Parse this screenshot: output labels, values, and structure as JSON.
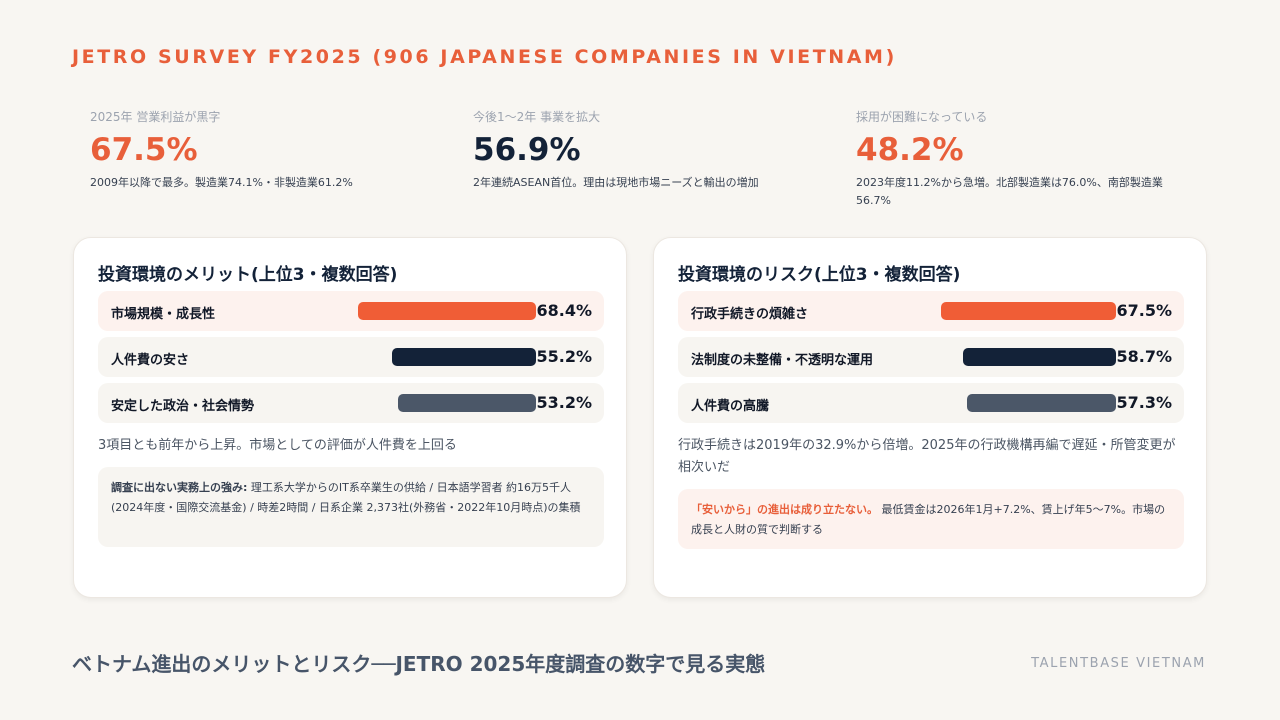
{
  "header": {
    "survey_title": "JETRO SURVEY FY2025 (906 JAPANESE COMPANIES IN VIETNAM)"
  },
  "stats": [
    {
      "label": "2025年 営業利益が黒字",
      "value": "67.5%",
      "note": "2009年以降で最多。製造業74.1%・非製造業61.2%",
      "color": "#e85f3a"
    },
    {
      "label": "今後1〜2年 事業を拡大",
      "value": "56.9%",
      "note": "2年連続ASEAN首位。理由は現地市場ニーズと輸出の増加",
      "color": "#132238"
    },
    {
      "label": "採用が困難になっている",
      "value": "48.2%",
      "note": "2023年度11.2%から急増。北部製造業は76.0%、南部製造業56.7%",
      "color": "#e85f3a"
    }
  ],
  "merits": {
    "title": "投資環境のメリット(上位3・複数回答)",
    "items": [
      {
        "label": "市場規模・成長性",
        "pct_text": "68.4%",
        "value": 68.4,
        "color": "#f05d36"
      },
      {
        "label": "人件費の安さ",
        "pct_text": "55.2%",
        "value": 55.2,
        "color": "#132238"
      },
      {
        "label": "安定した政治・社会情勢",
        "pct_text": "53.2%",
        "value": 53.2,
        "color": "#4b5768"
      }
    ],
    "note": "3項目とも前年から上昇。市場としての評価が人件費を上回る",
    "callout_lead": "調査に出ない実務上の強み:",
    "callout_body": " 理工系大学からのIT系卒業生の供給 / 日本語学習者 約16万5千人(2024年度・国際交流基金) / 時差2時間 / 日系企業 2,373社(外務省・2022年10月時点)の集積"
  },
  "risks": {
    "title": "投資環境のリスク(上位3・複数回答)",
    "items": [
      {
        "label": "行政手続きの煩雑さ",
        "pct_text": "67.5%",
        "value": 67.5,
        "color": "#f05d36"
      },
      {
        "label": "法制度の未整備・不透明な運用",
        "pct_text": "58.7%",
        "value": 58.7,
        "color": "#132238"
      },
      {
        "label": "人件費の高騰",
        "pct_text": "57.3%",
        "value": 57.3,
        "color": "#4b5768"
      }
    ],
    "note": "行政手続きは2019年の32.9%から倍増。2025年の行政機構再編で遅延・所管変更が相次いだ",
    "callout_lead": "「安いから」の進出は成り立たない。",
    "callout_body": " 最低賃金は2026年1月+7.2%、賃上げ年5〜7%。市場の成長と人財の質で判断する"
  },
  "footer": {
    "title": "ベトナム進出のメリットとリスク──JETRO 2025年度調査の数字で見る実態",
    "brand": "TALENTBASE VIETNAM"
  }
}
